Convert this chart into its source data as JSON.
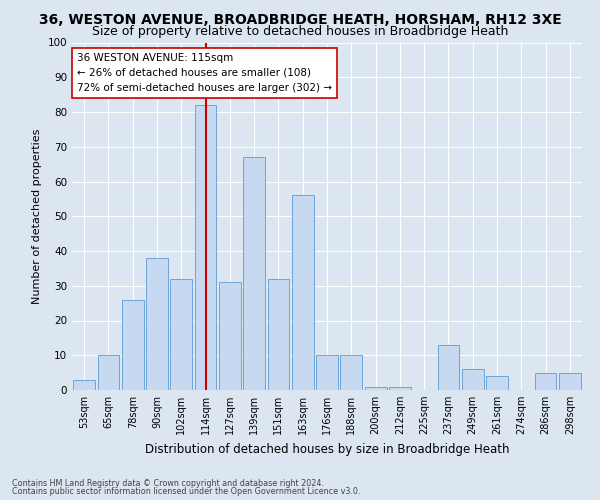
{
  "title1": "36, WESTON AVENUE, BROADBRIDGE HEATH, HORSHAM, RH12 3XE",
  "title2": "Size of property relative to detached houses in Broadbridge Heath",
  "xlabel": "Distribution of detached houses by size in Broadbridge Heath",
  "ylabel": "Number of detached properties",
  "footnote1": "Contains HM Land Registry data © Crown copyright and database right 2024.",
  "footnote2": "Contains public sector information licensed under the Open Government Licence v3.0.",
  "annotation_line1": "36 WESTON AVENUE: 115sqm",
  "annotation_line2": "← 26% of detached houses are smaller (108)",
  "annotation_line3": "72% of semi-detached houses are larger (302) →",
  "bar_labels": [
    "53sqm",
    "65sqm",
    "78sqm",
    "90sqm",
    "102sqm",
    "114sqm",
    "127sqm",
    "139sqm",
    "151sqm",
    "163sqm",
    "176sqm",
    "188sqm",
    "200sqm",
    "212sqm",
    "225sqm",
    "237sqm",
    "249sqm",
    "261sqm",
    "274sqm",
    "286sqm",
    "298sqm"
  ],
  "bar_values": [
    3,
    10,
    26,
    38,
    32,
    82,
    31,
    67,
    32,
    56,
    10,
    10,
    1,
    1,
    0,
    13,
    6,
    4,
    0,
    5,
    5
  ],
  "bar_color": "#c6d9f0",
  "bar_edge_color": "#5b9bd5",
  "vline_x": 5,
  "vline_color": "#cc0000",
  "ylim": [
    0,
    100
  ],
  "background_color": "#dce6f1",
  "axes_bg_color": "#dce6f1",
  "grid_color": "#ffffff",
  "title1_fontsize": 10,
  "title2_fontsize": 9,
  "xlabel_fontsize": 8.5,
  "ylabel_fontsize": 8,
  "tick_fontsize": 7,
  "annotation_box_color": "#ffffff",
  "annotation_box_edge": "#cc0000"
}
